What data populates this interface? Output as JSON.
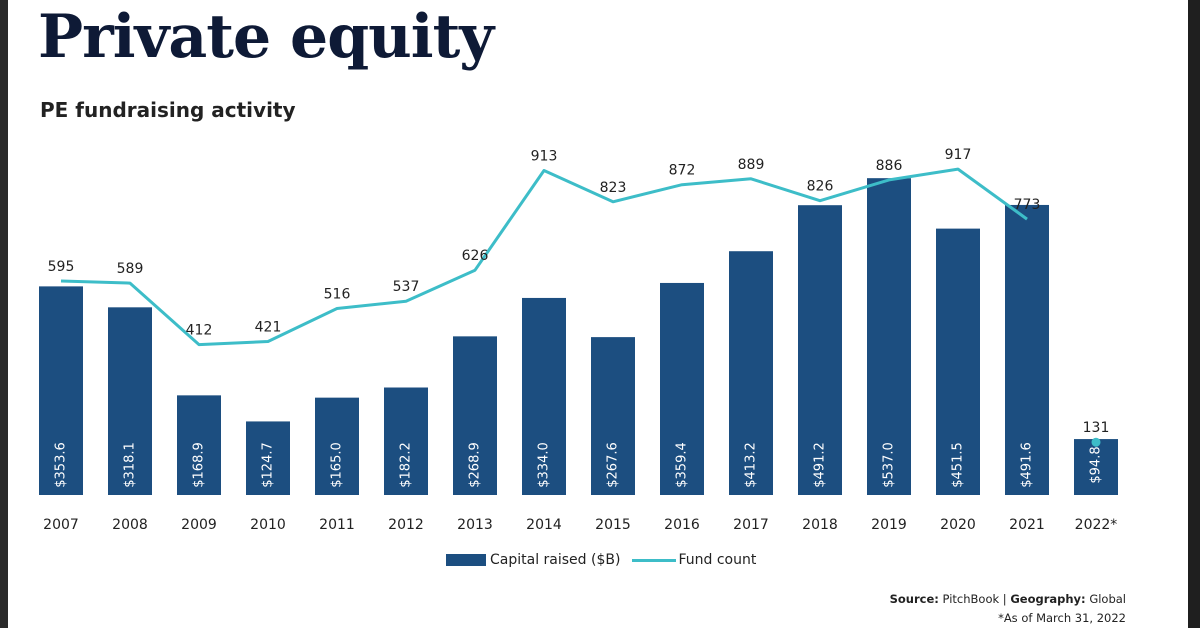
{
  "header": {
    "title": "Private equity",
    "subtitle": "PE fundraising activity"
  },
  "legend": {
    "bar_label": "Capital raised ($B)",
    "line_label": "Fund count"
  },
  "footer": {
    "source_label": "Source:",
    "source_value": "PitchBook",
    "separator": "|",
    "geography_label": "Geography:",
    "geography_value": "Global",
    "note": "*As of March 31, 2022"
  },
  "colors": {
    "bar": "#1c4e80",
    "line": "#3dbdc8",
    "text": "#222222",
    "bar_label": "#ffffff",
    "title": "#0e1a36"
  },
  "chart_data": {
    "type": "bar",
    "categories": [
      "2007",
      "2008",
      "2009",
      "2010",
      "2011",
      "2012",
      "2013",
      "2014",
      "2015",
      "2016",
      "2017",
      "2018",
      "2019",
      "2020",
      "2021",
      "2022*"
    ],
    "series": [
      {
        "name": "Capital raised ($B)",
        "type": "bar",
        "values": [
          353.6,
          318.1,
          168.9,
          124.7,
          165.0,
          182.2,
          268.9,
          334.0,
          267.6,
          359.4,
          413.2,
          491.2,
          537.0,
          451.5,
          491.6,
          94.8
        ],
        "labels": [
          "$353.6",
          "$318.1",
          "$168.9",
          "$124.7",
          "$165.0",
          "$182.2",
          "$268.9",
          "$334.0",
          "$267.6",
          "$359.4",
          "$413.2",
          "$491.2",
          "$537.0",
          "$451.5",
          "$491.6",
          "$94.8"
        ]
      },
      {
        "name": "Fund count",
        "type": "line",
        "values": [
          595,
          589,
          412,
          421,
          516,
          537,
          626,
          913,
          823,
          872,
          889,
          826,
          886,
          917,
          773,
          131
        ],
        "labels": [
          "595",
          "589",
          "412",
          "421",
          "516",
          "537",
          "626",
          "913",
          "823",
          "872",
          "889",
          "826",
          "886",
          "917",
          "773",
          "131"
        ],
        "line_break_before_last": true
      }
    ],
    "legend_position": "bottom",
    "grid": false
  }
}
